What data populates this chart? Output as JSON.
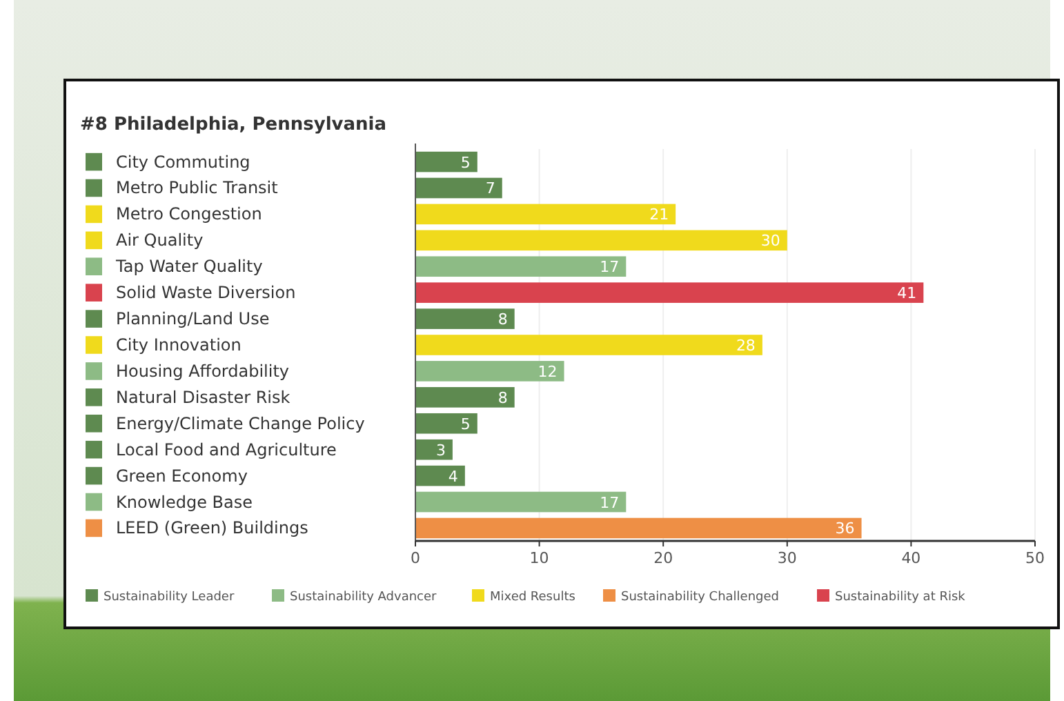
{
  "chart_data": {
    "type": "bar",
    "orientation": "horizontal",
    "title": "#8 Philadelphia, Pennsylvania",
    "categories": [
      "City Commuting",
      "Metro Public Transit",
      "Metro Congestion",
      "Air Quality",
      "Tap Water Quality",
      "Solid Waste Diversion",
      "Planning/Land Use",
      "City Innovation",
      "Housing Affordability",
      "Natural Disaster Risk",
      "Energy/Climate Change Policy",
      "Local Food and Agriculture",
      "Green Economy",
      "Knowledge Base",
      "LEED (Green) Buildings"
    ],
    "series": [
      {
        "name": "Sustainability Leader",
        "color": "#5e8a50",
        "values": [
          5,
          7,
          null,
          null,
          null,
          null,
          8,
          null,
          null,
          8,
          5,
          3,
          4,
          null,
          null
        ]
      },
      {
        "name": "Sustainability Advancer",
        "color": "#8dbb85",
        "values": [
          null,
          null,
          null,
          null,
          17,
          null,
          null,
          null,
          12,
          null,
          null,
          null,
          null,
          17,
          null
        ]
      },
      {
        "name": "Mixed Results",
        "color": "#f0da1c",
        "values": [
          null,
          null,
          21,
          30,
          null,
          null,
          null,
          28,
          null,
          null,
          null,
          null,
          null,
          null,
          null
        ]
      },
      {
        "name": "Sustainability Challenged",
        "color": "#ee8f45",
        "values": [
          null,
          null,
          null,
          null,
          null,
          null,
          null,
          null,
          null,
          null,
          null,
          null,
          null,
          null,
          36
        ]
      },
      {
        "name": "Sustainability at Risk",
        "color": "#d9434e",
        "values": [
          null,
          null,
          null,
          null,
          null,
          41,
          null,
          null,
          null,
          null,
          null,
          null,
          null,
          null,
          null
        ]
      }
    ],
    "xlim": [
      0,
      50
    ],
    "xticks": [
      0,
      10,
      20,
      30,
      40,
      50
    ],
    "grid": "x",
    "data_labels": true,
    "legend": "bottom"
  }
}
